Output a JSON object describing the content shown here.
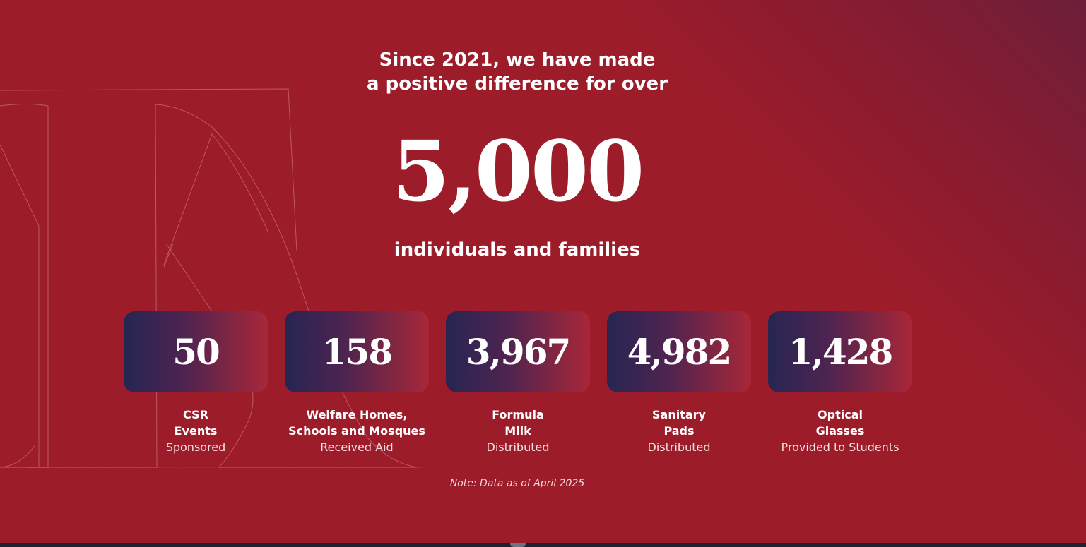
{
  "hero": {
    "intro_line1": "Since 2021, we have made",
    "intro_line2": "a positive difference for over",
    "big_number": "5,000",
    "subtitle": "individuals and families"
  },
  "stats": [
    {
      "value": "50",
      "line1": "CSR",
      "line2": "Events",
      "line3": "Sponsored"
    },
    {
      "value": "158",
      "line1": "Welfare Homes,",
      "line2": "Schools and Mosques",
      "line3": "Received Aid"
    },
    {
      "value": "3,967",
      "line1": "Formula",
      "line2": "Milk",
      "line3": "Distributed"
    },
    {
      "value": "4,982",
      "line1": "Sanitary",
      "line2": "Pads",
      "line3": "Distributed"
    },
    {
      "value": "1,428",
      "line1": "Optical",
      "line2": "Glasses",
      "line3": "Provided to Students"
    }
  ],
  "note": "Note: Data as of April 2025",
  "colors": {
    "background": "#9c1c29",
    "card_start": "#262553",
    "card_end": "#a82738"
  }
}
